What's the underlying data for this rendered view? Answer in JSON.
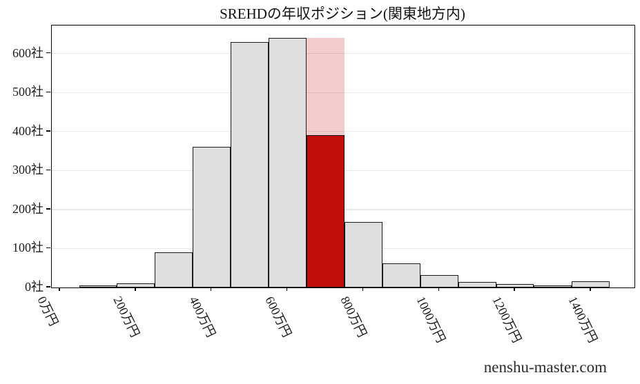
{
  "title": "SREHDの年収ポジション(関東地方内)",
  "watermark": "nenshu-master.com",
  "colors": {
    "background": "#ffffff",
    "bar_fill": "#dedede",
    "bar_edge": "#1a1a1a",
    "highlight_red": "#c00d0c",
    "highlight_pink": "#f1cccb",
    "grid": "#e8e8e8",
    "frame": "#000000",
    "text": "#1c1c1c"
  },
  "chart_data": {
    "type": "bar",
    "subtype": "histogram",
    "title": "SREHDの年収ポジション(関東地方内)",
    "xlabel": "",
    "ylabel": "",
    "x_unit": "万円",
    "y_unit": "社",
    "grid": "horizontal",
    "legend_position": "none",
    "bin_start": 50,
    "bin_width": 100,
    "counts": [
      2,
      10,
      90,
      360,
      630,
      640,
      640,
      168,
      62,
      32,
      15,
      8,
      5,
      16
    ],
    "highlight": {
      "bin_index": 6,
      "bin_range": [
        650,
        750
      ],
      "total_count": 640,
      "red_count": 390
    },
    "x_ticks": [
      {
        "value": 0,
        "label": "0万円"
      },
      {
        "value": 200,
        "label": "200万円"
      },
      {
        "value": 400,
        "label": "400万円"
      },
      {
        "value": 600,
        "label": "600万円"
      },
      {
        "value": 800,
        "label": "800万円"
      },
      {
        "value": 1000,
        "label": "1000万円"
      },
      {
        "value": 1200,
        "label": "1200万円"
      },
      {
        "value": 1400,
        "label": "1400万円"
      }
    ],
    "y_ticks": [
      {
        "value": 0,
        "label": "0社"
      },
      {
        "value": 100,
        "label": "100社"
      },
      {
        "value": 200,
        "label": "200社"
      },
      {
        "value": 300,
        "label": "300社"
      },
      {
        "value": 400,
        "label": "400社"
      },
      {
        "value": 500,
        "label": "500社"
      },
      {
        "value": 600,
        "label": "600社"
      }
    ],
    "xlim": [
      -22,
      1515
    ],
    "ylim": [
      0,
      672
    ]
  }
}
